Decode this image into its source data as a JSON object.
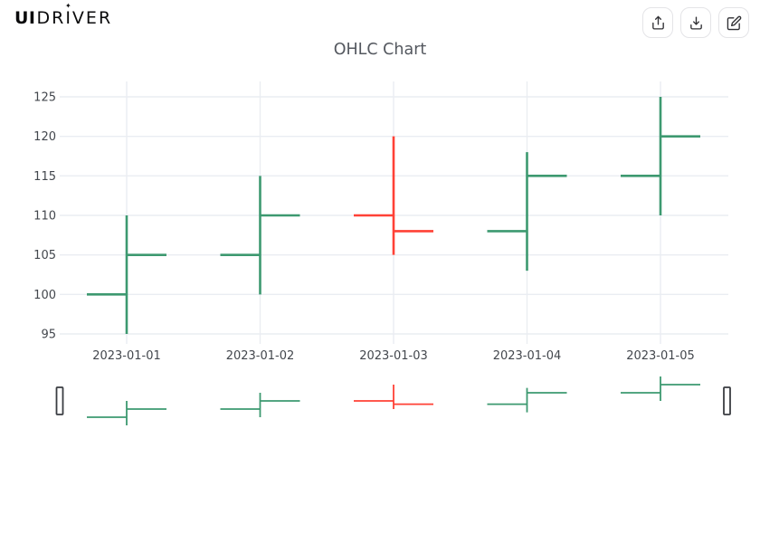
{
  "brand": {
    "prefix": "UI",
    "suffix": "DRIVER",
    "sparkle": "✦"
  },
  "toolbar": {
    "buttons": [
      {
        "id": "share",
        "icon": "share-icon"
      },
      {
        "id": "download",
        "icon": "download-icon"
      },
      {
        "id": "edit",
        "icon": "edit-icon"
      }
    ]
  },
  "chart_data": {
    "type": "ohlc",
    "title": "OHLC Chart",
    "categories": [
      "2023-01-01",
      "2023-01-02",
      "2023-01-03",
      "2023-01-04",
      "2023-01-05"
    ],
    "series": [
      {
        "date": "2023-01-01",
        "open": 100,
        "high": 110,
        "low": 95,
        "close": 105,
        "direction": "up"
      },
      {
        "date": "2023-01-02",
        "open": 105,
        "high": 115,
        "low": 100,
        "close": 110,
        "direction": "up"
      },
      {
        "date": "2023-01-03",
        "open": 110,
        "high": 120,
        "low": 105,
        "close": 108,
        "direction": "down"
      },
      {
        "date": "2023-01-04",
        "open": 108,
        "high": 118,
        "low": 103,
        "close": 115,
        "direction": "up"
      },
      {
        "date": "2023-01-05",
        "open": 115,
        "high": 125,
        "low": 110,
        "close": 120,
        "direction": "up"
      }
    ],
    "y_ticks": [
      95,
      100,
      105,
      110,
      115,
      120,
      125
    ],
    "ylim": [
      93.5,
      127
    ],
    "xlabel": "",
    "ylabel": "",
    "grid": true,
    "legend": false,
    "rangeslider": {
      "visible": true,
      "handles": 2
    },
    "colors": {
      "increasing": "#3D9970",
      "decreasing": "#FF4136",
      "grid": "#eaedf2",
      "tick_text": "#43474d",
      "title_text": "#54585f",
      "handle_border": "#3a3d42"
    }
  }
}
